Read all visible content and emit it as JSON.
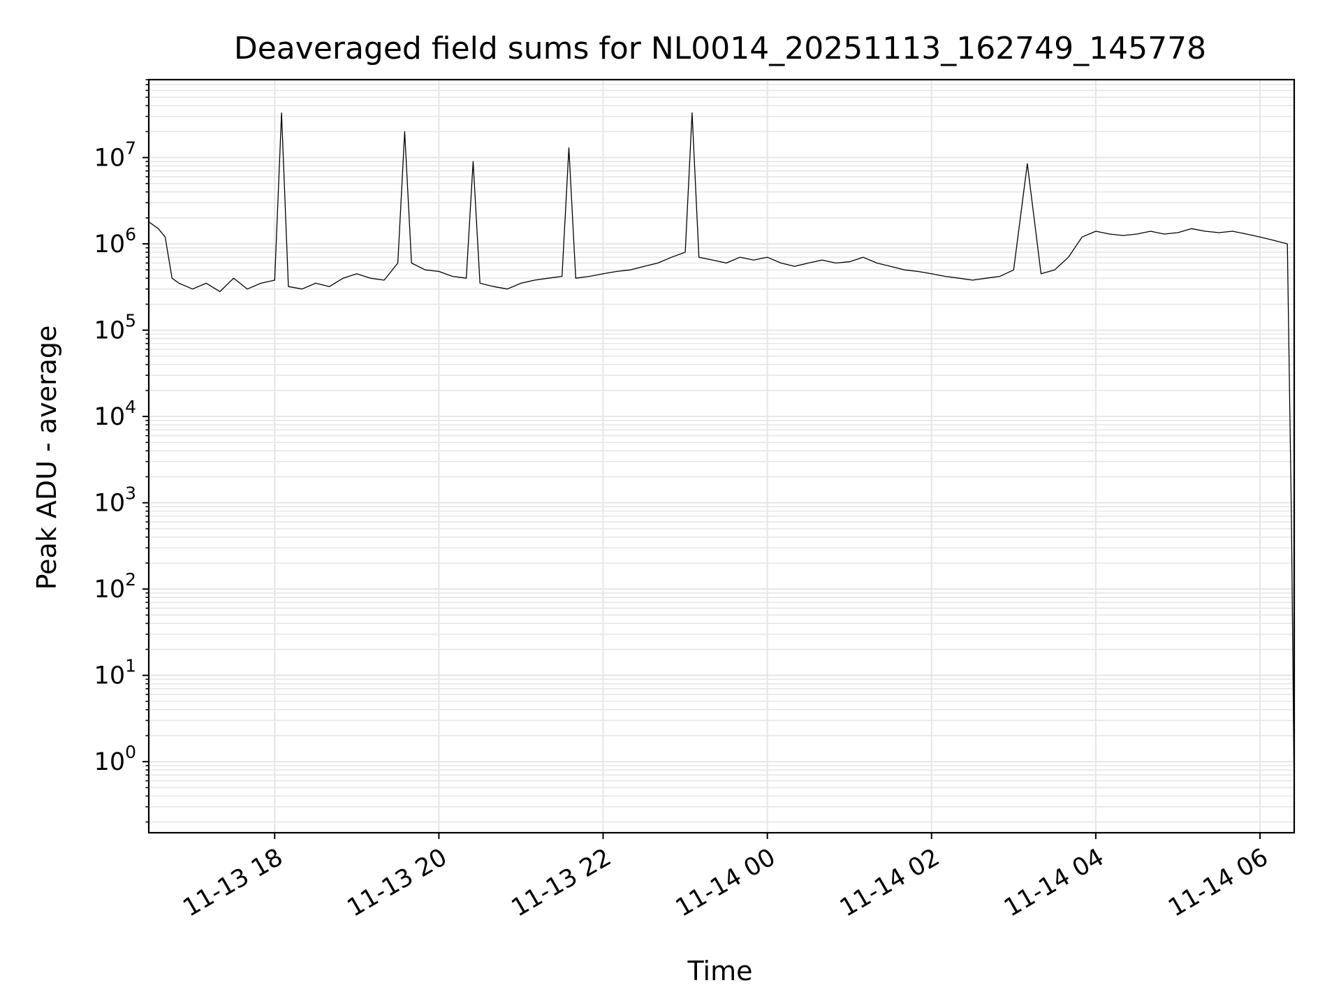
{
  "chart_data": {
    "type": "line",
    "title": "Deaveraged field sums for NL0014_20251113_162749_145778",
    "xlabel": "Time",
    "ylabel": "Peak ADU - average",
    "y_scale": "log",
    "grid": true,
    "legend": "none",
    "colors": {
      "line": "#000000",
      "grid": "#e6e6e6",
      "axes": "#000000"
    },
    "x_range": [
      "2025-11-13 16:28",
      "2025-11-14 06:25"
    ],
    "ylim": [
      0.15,
      80000000
    ],
    "x_tick_labels": [
      "11-13 18",
      "11-13 20",
      "11-13 22",
      "11-14 00",
      "11-14 02",
      "11-14 04",
      "11-14 06"
    ],
    "x_ticks": [
      "2025-11-13 18:00",
      "2025-11-13 20:00",
      "2025-11-13 22:00",
      "2025-11-14 00:00",
      "2025-11-14 02:00",
      "2025-11-14 04:00",
      "2025-11-14 06:00"
    ],
    "y_ticks": [
      1,
      10,
      100,
      1000,
      10000,
      100000,
      1000000,
      10000000
    ],
    "y_tick_labels": [
      {
        "base": "10",
        "exp": "0"
      },
      {
        "base": "10",
        "exp": "1"
      },
      {
        "base": "10",
        "exp": "2"
      },
      {
        "base": "10",
        "exp": "3"
      },
      {
        "base": "10",
        "exp": "4"
      },
      {
        "base": "10",
        "exp": "5"
      },
      {
        "base": "10",
        "exp": "6"
      },
      {
        "base": "10",
        "exp": "7"
      }
    ],
    "series": [
      {
        "color": "#000000",
        "x": [
          "2025-11-13 16:28",
          "2025-11-13 16:35",
          "2025-11-13 16:40",
          "2025-11-13 16:45",
          "2025-11-13 16:50",
          "2025-11-13 17:00",
          "2025-11-13 17:10",
          "2025-11-13 17:20",
          "2025-11-13 17:30",
          "2025-11-13 17:40",
          "2025-11-13 17:50",
          "2025-11-13 18:00",
          "2025-11-13 18:05",
          "2025-11-13 18:10",
          "2025-11-13 18:20",
          "2025-11-13 18:30",
          "2025-11-13 18:40",
          "2025-11-13 18:50",
          "2025-11-13 19:00",
          "2025-11-13 19:10",
          "2025-11-13 19:20",
          "2025-11-13 19:30",
          "2025-11-13 19:35",
          "2025-11-13 19:40",
          "2025-11-13 19:50",
          "2025-11-13 20:00",
          "2025-11-13 20:10",
          "2025-11-13 20:20",
          "2025-11-13 20:25",
          "2025-11-13 20:30",
          "2025-11-13 20:40",
          "2025-11-13 20:50",
          "2025-11-13 21:00",
          "2025-11-13 21:10",
          "2025-11-13 21:20",
          "2025-11-13 21:30",
          "2025-11-13 21:35",
          "2025-11-13 21:40",
          "2025-11-13 21:50",
          "2025-11-13 22:00",
          "2025-11-13 22:10",
          "2025-11-13 22:20",
          "2025-11-13 22:30",
          "2025-11-13 22:40",
          "2025-11-13 22:50",
          "2025-11-13 23:00",
          "2025-11-13 23:05",
          "2025-11-13 23:10",
          "2025-11-13 23:20",
          "2025-11-13 23:30",
          "2025-11-13 23:40",
          "2025-11-13 23:50",
          "2025-11-14 00:00",
          "2025-11-14 00:10",
          "2025-11-14 00:20",
          "2025-11-14 00:30",
          "2025-11-14 00:40",
          "2025-11-14 00:50",
          "2025-11-14 01:00",
          "2025-11-14 01:10",
          "2025-11-14 01:20",
          "2025-11-14 01:30",
          "2025-11-14 01:40",
          "2025-11-14 01:50",
          "2025-11-14 02:00",
          "2025-11-14 02:10",
          "2025-11-14 02:20",
          "2025-11-14 02:30",
          "2025-11-14 02:40",
          "2025-11-14 02:50",
          "2025-11-14 03:00",
          "2025-11-14 03:10",
          "2025-11-14 03:20",
          "2025-11-14 03:30",
          "2025-11-14 03:40",
          "2025-11-14 03:50",
          "2025-11-14 04:00",
          "2025-11-14 04:10",
          "2025-11-14 04:20",
          "2025-11-14 04:30",
          "2025-11-14 04:40",
          "2025-11-14 04:50",
          "2025-11-14 05:00",
          "2025-11-14 05:10",
          "2025-11-14 05:20",
          "2025-11-14 05:30",
          "2025-11-14 05:40",
          "2025-11-14 05:50",
          "2025-11-14 06:00",
          "2025-11-14 06:10",
          "2025-11-14 06:20",
          "2025-11-14 06:23",
          "2025-11-14 06:25"
        ],
        "y": [
          1800000,
          1500000,
          1200000,
          400000,
          350000,
          300000,
          350000,
          280000,
          400000,
          300000,
          350000,
          380000,
          33000000,
          320000,
          300000,
          350000,
          320000,
          400000,
          450000,
          400000,
          380000,
          600000,
          20000000,
          600000,
          500000,
          480000,
          420000,
          400000,
          9000000,
          350000,
          320000,
          300000,
          350000,
          380000,
          400000,
          420000,
          13000000,
          400000,
          420000,
          450000,
          480000,
          500000,
          550000,
          600000,
          700000,
          800000,
          33000000,
          700000,
          650000,
          600000,
          700000,
          650000,
          700000,
          600000,
          550000,
          600000,
          650000,
          600000,
          620000,
          700000,
          600000,
          550000,
          500000,
          480000,
          450000,
          420000,
          400000,
          380000,
          400000,
          420000,
          500000,
          8500000,
          450000,
          500000,
          700000,
          1200000,
          1400000,
          1300000,
          1250000,
          1300000,
          1400000,
          1300000,
          1350000,
          1500000,
          1400000,
          1350000,
          1400000,
          1300000,
          1200000,
          1100000,
          1000000,
          600,
          0.4
        ]
      }
    ]
  }
}
